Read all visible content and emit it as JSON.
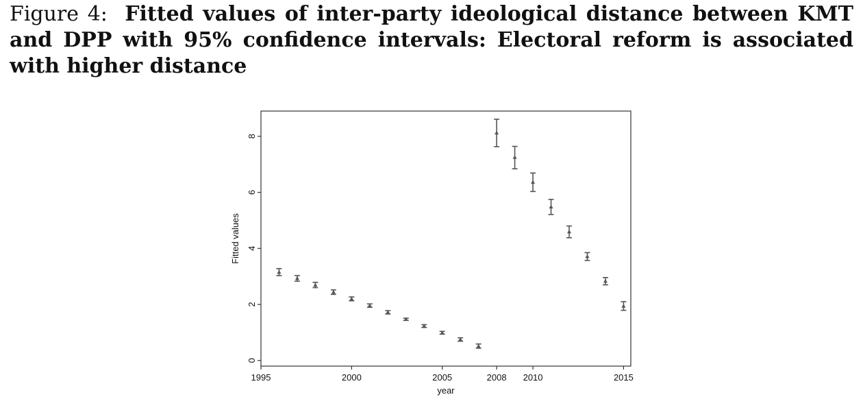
{
  "caption": {
    "lead": "Figure 4:",
    "title": "Fitted values of inter-party ideological distance between KMT and DPP with 95% confidence intervals: Electoral reform is associated with higher distance"
  },
  "chart_data": {
    "type": "scatter",
    "error_bars": true,
    "title": "",
    "xlabel": "year",
    "ylabel": "Fitted values",
    "xlim": [
      1995,
      2015.4
    ],
    "ylim": [
      -0.2,
      8.9
    ],
    "xticks": [
      1995,
      2000,
      2005,
      2008,
      2010,
      2015
    ],
    "yticks": [
      0,
      2,
      4,
      6,
      8
    ],
    "grid": false,
    "legend": "none",
    "marker_color": "#555555",
    "series": [
      {
        "x": [
          1996,
          1997,
          1998,
          1999,
          2000,
          2001,
          2002,
          2003,
          2004,
          2005,
          2006,
          2007,
          2008,
          2009,
          2010,
          2011,
          2012,
          2013,
          2014,
          2015
        ],
        "y": [
          3.15,
          2.93,
          2.69,
          2.44,
          2.2,
          1.96,
          1.72,
          1.47,
          1.23,
          0.99,
          0.75,
          0.51,
          8.12,
          7.25,
          6.36,
          5.48,
          4.59,
          3.71,
          2.83,
          1.94
        ],
        "lower": [
          3.03,
          2.83,
          2.6,
          2.36,
          2.13,
          1.9,
          1.66,
          1.43,
          1.18,
          0.94,
          0.69,
          0.44,
          7.63,
          6.84,
          6.03,
          5.21,
          4.38,
          3.57,
          2.7,
          1.79
        ],
        "upper": [
          3.28,
          3.03,
          2.79,
          2.52,
          2.27,
          2.02,
          1.78,
          1.51,
          1.28,
          1.04,
          0.81,
          0.59,
          8.61,
          7.64,
          6.69,
          5.75,
          4.8,
          3.85,
          2.96,
          2.1
        ]
      }
    ]
  }
}
